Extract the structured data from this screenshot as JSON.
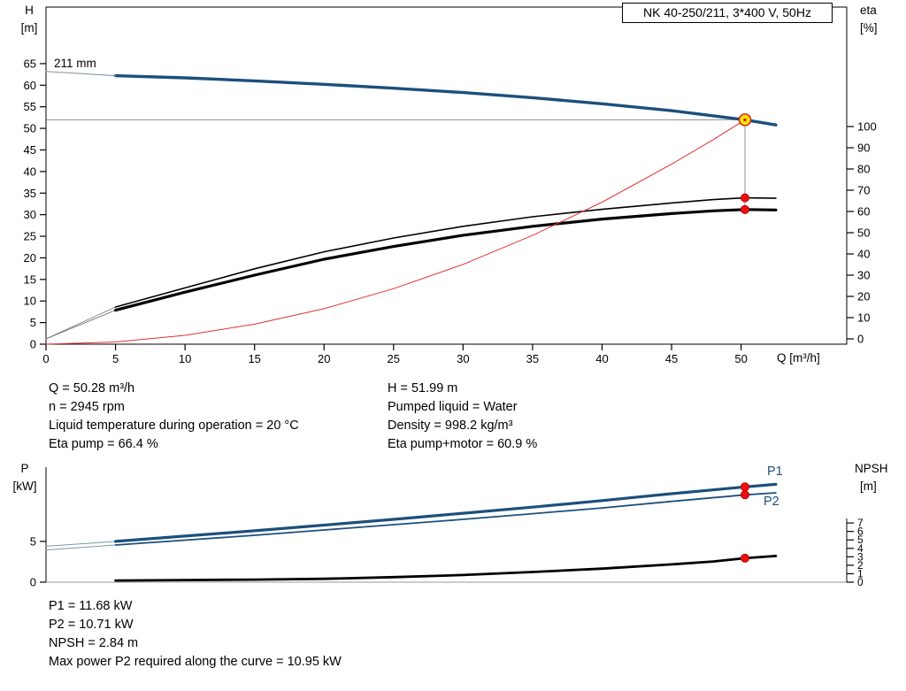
{
  "title_box": {
    "label": "NK 40-250/211, 3*400 V, 50Hz"
  },
  "top_chart": {
    "y_left_title": "H",
    "y_left_unit": "[m]",
    "y_right_title": "eta",
    "y_right_unit": "[%]",
    "x_axis_label": "Q [m³/h]",
    "impeller_label": "211 mm"
  },
  "bottom_chart": {
    "y_left_title": "P",
    "y_left_unit": "[kW]",
    "y_right_title": "NPSH",
    "y_right_unit": "[m]",
    "p1_label": "P1",
    "p2_label": "P2"
  },
  "results_top_left": [
    "Q = 50.28 m³/h",
    "n = 2945 rpm",
    "Liquid temperature during operation = 20 °C",
    "Eta pump = 66.4 %"
  ],
  "results_top_right": [
    "H = 51.99 m",
    "Pumped liquid = Water",
    "Density = 998.2 kg/m³",
    "Eta pump+motor = 60.9 %"
  ],
  "results_bottom": [
    "P1 = 11.68 kW",
    "P2 = 10.71 kW",
    "NPSH = 2.84 m",
    "Max power P2 required along the curve = 10.95 kW"
  ],
  "colors": {
    "curve_blue": "#1c4f7c",
    "curve_black": "#000000",
    "system_red": "#e03131",
    "marker_red": "#f20d0d",
    "duty_yellow": "#ffe800",
    "helper_gray": "#909090",
    "lead_gray": "#8096a8"
  },
  "chart_data": [
    {
      "type": "line",
      "title": "NK 40-250/211, 3*400 V, 50Hz",
      "xlabel": "Q [m³/h]",
      "ylabel_left": "H [m]",
      "ylabel_right": "eta [%]",
      "xlim": [
        0,
        57.6
      ],
      "ylim_left": [
        0,
        78.1
      ],
      "ylim_right": [
        -2.5,
        156.25
      ],
      "grid": false,
      "x_ticks": [
        0,
        5,
        10,
        15,
        20,
        25,
        30,
        35,
        40,
        45,
        50
      ],
      "y_left_ticks": [
        0,
        5,
        10,
        15,
        20,
        25,
        30,
        35,
        40,
        45,
        50,
        55,
        60,
        65
      ],
      "y_right_ticks": [
        0,
        10,
        20,
        30,
        40,
        50,
        60,
        70,
        80,
        90,
        100
      ],
      "series": [
        {
          "name": "pump-curve-211mm",
          "axis": "H",
          "color": "#1c4f7c",
          "width": 3.4,
          "points": [
            [
              5,
              62.2
            ],
            [
              10,
              61.7
            ],
            [
              15,
              61.0
            ],
            [
              20,
              60.2
            ],
            [
              25,
              59.3
            ],
            [
              30,
              58.3
            ],
            [
              35,
              57.1
            ],
            [
              40,
              55.7
            ],
            [
              45,
              54.1
            ],
            [
              48,
              52.9
            ],
            [
              50.28,
              51.99
            ],
            [
              52.5,
              50.8
            ]
          ]
        },
        {
          "name": "pump-curve-leadin",
          "axis": "H",
          "color": "#8096a8",
          "width": 1,
          "points": [
            [
              0,
              63.2
            ],
            [
              5,
              62.2
            ]
          ]
        },
        {
          "name": "eta-pump-leadin",
          "axis": "eta",
          "color": "#777777",
          "width": 0.9,
          "points": [
            [
              0,
              0
            ],
            [
              5,
              15
            ]
          ]
        },
        {
          "name": "eta-pump-motor-leadin",
          "axis": "eta",
          "color": "#777777",
          "width": 0.9,
          "points": [
            [
              0,
              0
            ],
            [
              5,
              13.5
            ]
          ]
        },
        {
          "name": "eta-pump",
          "axis": "eta",
          "color": "#000000",
          "width": 1.6,
          "points": [
            [
              5,
              15
            ],
            [
              10,
              24
            ],
            [
              15,
              33
            ],
            [
              20,
              41
            ],
            [
              25,
              47.5
            ],
            [
              30,
              53
            ],
            [
              35,
              57.5
            ],
            [
              40,
              61
            ],
            [
              45,
              64
            ],
            [
              48,
              65.6
            ],
            [
              50.28,
              66.4
            ],
            [
              52.5,
              66.2
            ]
          ]
        },
        {
          "name": "eta-pump-motor",
          "axis": "eta",
          "color": "#000000",
          "width": 3.2,
          "points": [
            [
              5,
              13.5
            ],
            [
              10,
              22
            ],
            [
              15,
              30
            ],
            [
              20,
              37.5
            ],
            [
              25,
              43.5
            ],
            [
              30,
              48.8
            ],
            [
              35,
              53
            ],
            [
              40,
              56.4
            ],
            [
              45,
              59
            ],
            [
              48,
              60.3
            ],
            [
              50.28,
              60.9
            ],
            [
              52.5,
              60.7
            ]
          ]
        },
        {
          "name": "system-curve",
          "axis": "H",
          "color": "#e03131",
          "width": 1,
          "points": [
            [
              0,
              0
            ],
            [
              5,
              0.51
            ],
            [
              10,
              2.06
            ],
            [
              15,
              4.63
            ],
            [
              20,
              8.22
            ],
            [
              25,
              12.85
            ],
            [
              30,
              18.5
            ],
            [
              35,
              25.2
            ],
            [
              40,
              32.9
            ],
            [
              45,
              41.7
            ],
            [
              48,
              47.4
            ],
            [
              50.28,
              51.99
            ]
          ]
        }
      ],
      "helper_lines": [
        {
          "name": "duty-horizontal-line",
          "axis": "H",
          "color": "#909090",
          "width": 1,
          "points": [
            [
              0,
              51.99
            ],
            [
              50.28,
              51.99
            ]
          ]
        },
        {
          "name": "duty-vertical-line",
          "axis": "H",
          "color": "#909090",
          "width": 1,
          "points": [
            [
              50.28,
              51.99
            ],
            [
              50.28,
              30.2
            ]
          ]
        }
      ],
      "markers": [
        {
          "name": "duty-point",
          "axis": "H",
          "x": 50.28,
          "y": 51.99,
          "style": "duty"
        },
        {
          "name": "eta-pump-point",
          "axis": "eta",
          "x": 50.28,
          "y": 66.4,
          "style": "dot"
        },
        {
          "name": "eta-pump-motor-point",
          "axis": "eta",
          "x": 50.28,
          "y": 60.9,
          "style": "dot"
        }
      ],
      "duty_point": {
        "Q": 50.28,
        "H": 51.99,
        "eta_pump": 66.4,
        "eta_pump_motor": 60.9
      }
    },
    {
      "type": "line",
      "title": "",
      "xlabel": "",
      "ylabel_left": "P [kW]",
      "ylabel_right": "NPSH [m]",
      "xlim": [
        0,
        57.6
      ],
      "ylim_left": [
        0,
        14.1
      ],
      "ylim_right": [
        0,
        13.6
      ],
      "grid": false,
      "x_ticks": [],
      "y_left_ticks": [
        0,
        5
      ],
      "y_right_ticks": [
        0,
        1,
        2,
        3,
        4,
        5,
        6,
        7
      ],
      "series": [
        {
          "name": "p1-leadin",
          "axis": "P",
          "color": "#8096a8",
          "width": 1,
          "points": [
            [
              0,
              4.4
            ],
            [
              5,
              5.0
            ]
          ]
        },
        {
          "name": "p2-leadin",
          "axis": "P",
          "color": "#8096a8",
          "width": 1,
          "points": [
            [
              0,
              3.95
            ],
            [
              5,
              4.55
            ]
          ]
        },
        {
          "name": "p1-curve",
          "axis": "P",
          "color": "#1c4f7c",
          "width": 3.2,
          "points": [
            [
              5,
              5.0
            ],
            [
              10,
              5.65
            ],
            [
              15,
              6.3
            ],
            [
              20,
              7.0
            ],
            [
              25,
              7.7
            ],
            [
              30,
              8.45
            ],
            [
              35,
              9.2
            ],
            [
              40,
              10.0
            ],
            [
              45,
              10.85
            ],
            [
              50.28,
              11.68
            ],
            [
              52.5,
              12.0
            ]
          ]
        },
        {
          "name": "p2-curve",
          "axis": "P",
          "color": "#1c4f7c",
          "width": 1.8,
          "points": [
            [
              5,
              4.55
            ],
            [
              10,
              5.15
            ],
            [
              15,
              5.75
            ],
            [
              20,
              6.4
            ],
            [
              25,
              7.05
            ],
            [
              30,
              7.7
            ],
            [
              35,
              8.4
            ],
            [
              40,
              9.1
            ],
            [
              45,
              9.9
            ],
            [
              50.28,
              10.71
            ],
            [
              52.5,
              10.95
            ]
          ]
        },
        {
          "name": "npsh-curve",
          "axis": "NPSH",
          "color": "#000000",
          "width": 2.8,
          "points": [
            [
              5,
              0.2
            ],
            [
              10,
              0.25
            ],
            [
              15,
              0.3
            ],
            [
              20,
              0.4
            ],
            [
              25,
              0.6
            ],
            [
              30,
              0.85
            ],
            [
              35,
              1.2
            ],
            [
              40,
              1.6
            ],
            [
              45,
              2.1
            ],
            [
              48,
              2.45
            ],
            [
              50.28,
              2.84
            ],
            [
              52.5,
              3.1
            ]
          ]
        }
      ],
      "helper_lines": [
        {
          "name": "zero-baseline",
          "axis": "NPSH",
          "color": "#999999",
          "width": 1,
          "points": [
            [
              0,
              0
            ],
            [
              57.6,
              0
            ]
          ]
        }
      ],
      "markers": [
        {
          "name": "p1-point",
          "axis": "P",
          "x": 50.28,
          "y": 11.68,
          "style": "dot"
        },
        {
          "name": "p2-point",
          "axis": "P",
          "x": 50.28,
          "y": 10.71,
          "style": "dot"
        },
        {
          "name": "npsh-point",
          "axis": "NPSH",
          "x": 50.28,
          "y": 2.84,
          "style": "dot"
        }
      ],
      "values": {
        "P1_kW": 11.68,
        "P2_kW": 10.71,
        "NPSH_m": 2.84,
        "max_P2_kW": 10.95
      }
    }
  ]
}
